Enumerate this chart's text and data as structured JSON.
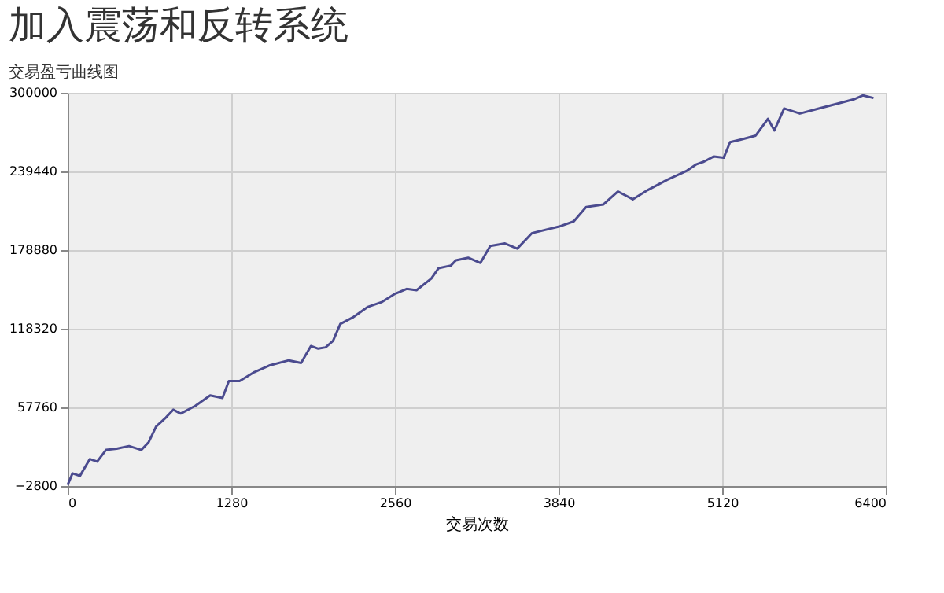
{
  "chart_data": {
    "type": "line",
    "title": "交易盈亏曲线图",
    "subtitle": "加入震荡和反转系统",
    "xlabel": "交易次数",
    "x": [
      0,
      38,
      96,
      173,
      231,
      300,
      384,
      480,
      577,
      634,
      692,
      769,
      826,
      884,
      999,
      1115,
      1211,
      1261,
      1345,
      1461,
      1576,
      1730,
      1826,
      1903,
      1960,
      2018,
      2076,
      2133,
      2230,
      2345,
      2460,
      2556,
      2652,
      2729,
      2845,
      2902,
      2998,
      3037,
      3133,
      3229,
      3306,
      3421,
      3517,
      3633,
      3844,
      3959,
      4056,
      4190,
      4305,
      4421,
      4536,
      4690,
      4844,
      4920,
      4978,
      5055,
      5132,
      5182,
      5266,
      5382,
      5478,
      5528,
      5605,
      5728,
      5881,
      6035,
      6150,
      6220,
      6304
    ],
    "series": [
      {
        "color": "#4b4b8f",
        "values": [
          -2000,
          7000,
          5000,
          18000,
          16000,
          25000,
          26000,
          28000,
          25000,
          31000,
          43000,
          50000,
          56000,
          53000,
          59000,
          67000,
          65000,
          78000,
          78000,
          85000,
          90000,
          94000,
          92000,
          105000,
          103000,
          104000,
          109000,
          122000,
          127000,
          135000,
          139000,
          145000,
          149000,
          148000,
          157000,
          165000,
          167000,
          171000,
          173000,
          169000,
          182000,
          184000,
          180000,
          192000,
          197000,
          201000,
          212000,
          214000,
          224000,
          218000,
          225000,
          233000,
          240000,
          245000,
          247000,
          251000,
          250000,
          262000,
          264000,
          267000,
          280000,
          271000,
          288000,
          284000,
          288000,
          292000,
          295000,
          298000,
          296000
        ]
      }
    ],
    "xlim": [
      0,
      6400
    ],
    "xticks": [
      0,
      1280,
      2560,
      3840,
      5120,
      6400
    ],
    "ylim": [
      -2800,
      300000
    ],
    "yticks": [
      -2800,
      57760,
      118320,
      178880,
      239440,
      300000
    ],
    "grid": true,
    "legend": false,
    "marker": "none",
    "line_style": "solid"
  }
}
